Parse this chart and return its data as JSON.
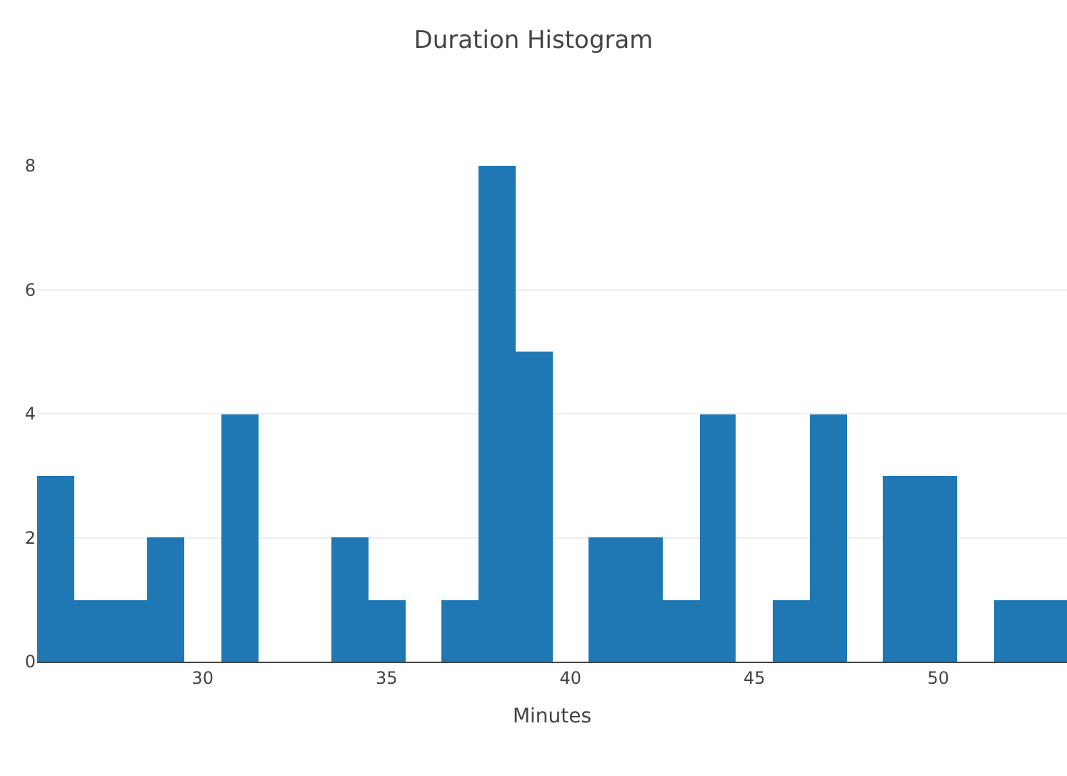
{
  "chart_data": {
    "type": "histogram",
    "title": "Duration Histogram",
    "xlabel": "Minutes",
    "bins": [
      25.5,
      26.5,
      27.5,
      28.5,
      29.5,
      30.5,
      31.5,
      32.5,
      33.5,
      34.5,
      35.5,
      36.5,
      37.5,
      38.5,
      39.5,
      40.5,
      41.5,
      42.5,
      43.5,
      44.5,
      45.5,
      46.5,
      47.5,
      48.5,
      49.5,
      50.5,
      51.5,
      52.5,
      53.5
    ],
    "values": [
      3,
      1,
      1,
      2,
      0,
      4,
      0,
      0,
      2,
      1,
      0,
      1,
      8,
      5,
      0,
      2,
      2,
      1,
      4,
      0,
      1,
      4,
      0,
      3,
      3,
      0,
      1,
      1
    ],
    "color": "#1f77b4",
    "xlim": [
      25.5,
      53.5
    ],
    "xticks": [
      30,
      35,
      40,
      45,
      50
    ],
    "ylim": [
      0,
      8
    ],
    "yticks": [
      0,
      2,
      4,
      6,
      8
    ],
    "grid": "y"
  }
}
